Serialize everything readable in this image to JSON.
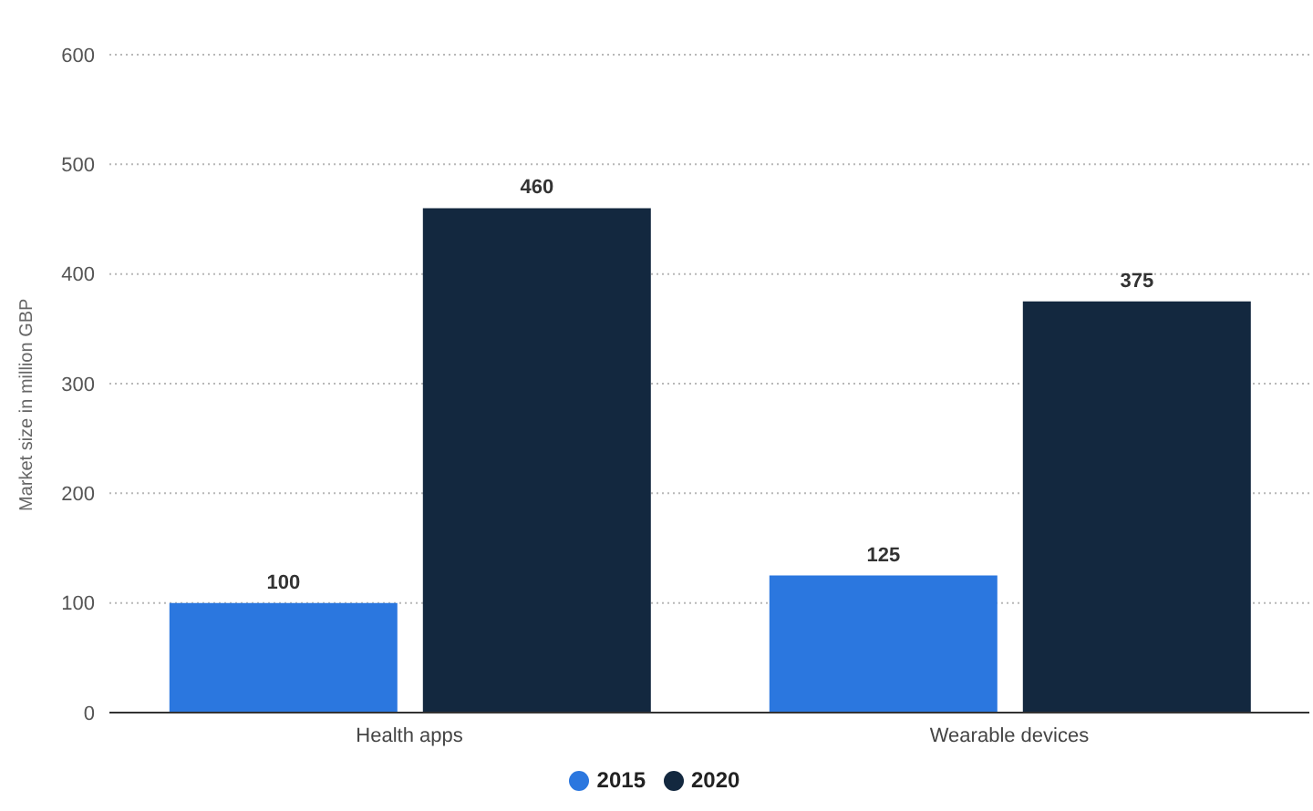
{
  "chart_data": {
    "type": "bar",
    "ylabel": "Market size in million GBP",
    "categories": [
      "Health apps",
      "Wearable devices"
    ],
    "series": [
      {
        "name": "2015",
        "color": "#2b77df",
        "values": [
          100,
          125
        ]
      },
      {
        "name": "2020",
        "color": "#13283f",
        "values": [
          460,
          375
        ]
      }
    ],
    "ylim": [
      0,
      600
    ],
    "yticks": [
      0,
      100,
      200,
      300,
      400,
      500,
      600
    ],
    "grid": "y",
    "legend": "bottom",
    "data_labels": true
  }
}
